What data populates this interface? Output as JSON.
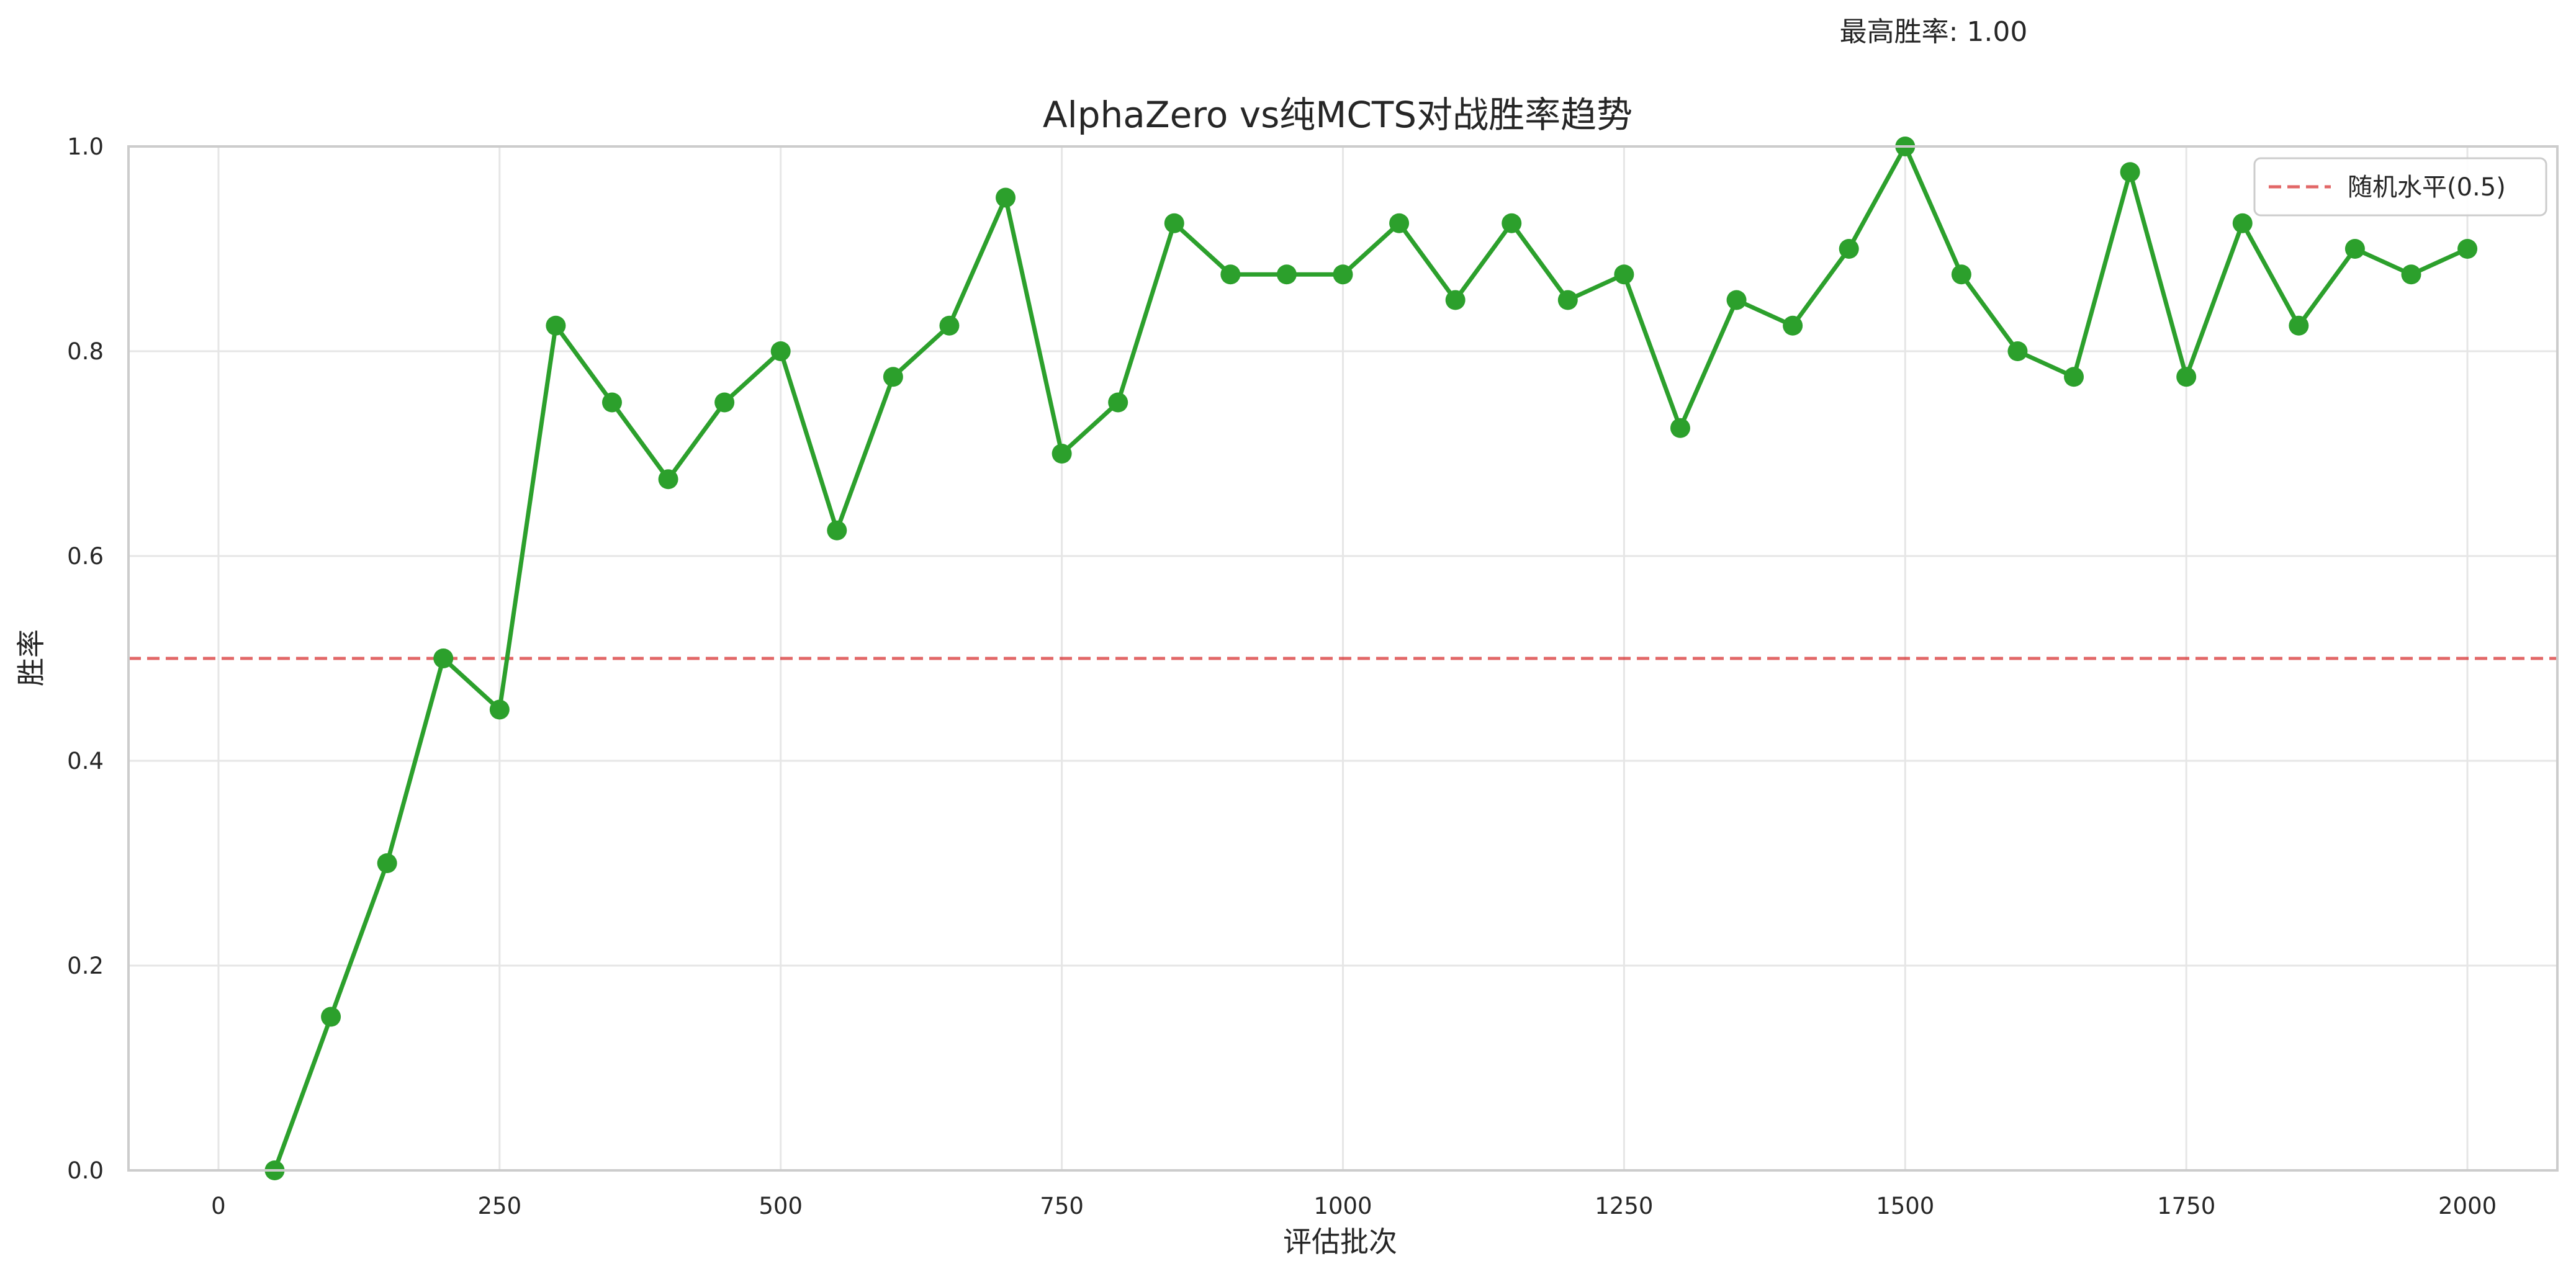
{
  "chart_data": {
    "type": "line",
    "title": "AlphaZero vs纯MCTS对战胜率趋势",
    "xlabel": "评估批次",
    "ylabel": "胜率",
    "xlim": [
      -80,
      2080
    ],
    "ylim": [
      0.0,
      1.0
    ],
    "xticks": [
      0,
      250,
      500,
      750,
      1000,
      1250,
      1500,
      1750,
      2000
    ],
    "xtick_labels": [
      "0",
      "250",
      "500",
      "750",
      "1000",
      "1250",
      "1500",
      "1750",
      "2000"
    ],
    "yticks": [
      0.0,
      0.2,
      0.4,
      0.6,
      0.8,
      1.0
    ],
    "ytick_labels": [
      "0.0",
      "0.2",
      "0.4",
      "0.6",
      "0.8",
      "1.0"
    ],
    "grid": true,
    "legend_position": "top-right",
    "annotation": "最高胜率: 1.00",
    "series": [
      {
        "color": "#2ca02c",
        "marker": "circle",
        "x": [
          50,
          100,
          150,
          200,
          250,
          300,
          350,
          400,
          450,
          500,
          550,
          600,
          650,
          700,
          750,
          800,
          850,
          900,
          950,
          1000,
          1050,
          1100,
          1150,
          1200,
          1250,
          1300,
          1350,
          1400,
          1450,
          1500,
          1550,
          1600,
          1650,
          1700,
          1750,
          1800,
          1850,
          1900,
          1950,
          2000
        ],
        "y": [
          0.0,
          0.15,
          0.3,
          0.5,
          0.45,
          0.825,
          0.75,
          0.675,
          0.75,
          0.8,
          0.625,
          0.775,
          0.825,
          0.95,
          0.7,
          0.75,
          0.925,
          0.875,
          0.875,
          0.875,
          0.925,
          0.85,
          0.925,
          0.85,
          0.875,
          0.725,
          0.85,
          0.825,
          0.9,
          1.0,
          0.875,
          0.8,
          0.775,
          0.975,
          0.775,
          0.925,
          0.825,
          0.9,
          0.875,
          0.9
        ]
      }
    ],
    "reference_lines": [
      {
        "name": "随机水平(0.5)",
        "y": 0.5,
        "color": "#d62728",
        "style": "dashed"
      }
    ]
  }
}
